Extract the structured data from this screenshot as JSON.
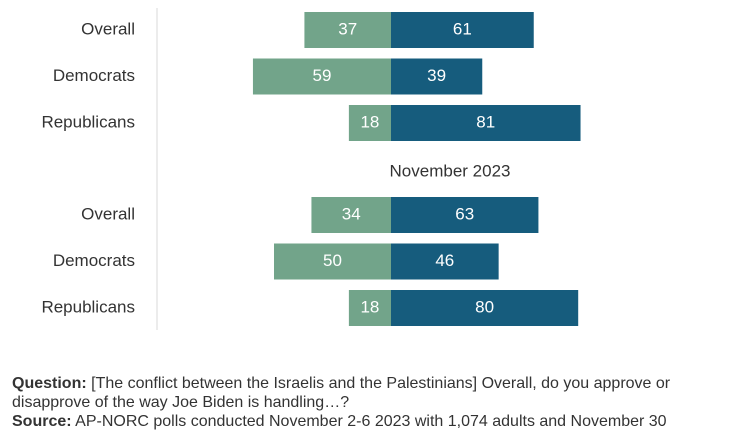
{
  "chart_data": {
    "type": "bar",
    "orientation": "horizontal",
    "layout": "diverging",
    "colors": {
      "disapprove": "#72a48a",
      "approve": "#165c7d",
      "axis": "#d9d9d9"
    },
    "groups": [
      {
        "title": "",
        "categories": [
          "Overall",
          "Democrats",
          "Republicans"
        ],
        "series": [
          {
            "values": [
              37,
              59,
              18
            ]
          },
          {
            "values": [
              61,
              39,
              81
            ]
          }
        ]
      },
      {
        "title": "November 2023",
        "categories": [
          "Overall",
          "Democrats",
          "Republicans"
        ],
        "series": [
          {
            "values": [
              34,
              50,
              18
            ]
          },
          {
            "values": [
              63,
              46,
              80
            ]
          }
        ]
      }
    ]
  },
  "notes": {
    "question_label": "Question:",
    "question_text": "[The conflict between the Israelis and the Palestinians] Overall, do you approve or disapprove of the way Joe Biden is handling…?",
    "source_label": "Source:",
    "source_text": "AP-NORC polls conducted November 2-6 2023 with 1,074 adults and November 30"
  }
}
